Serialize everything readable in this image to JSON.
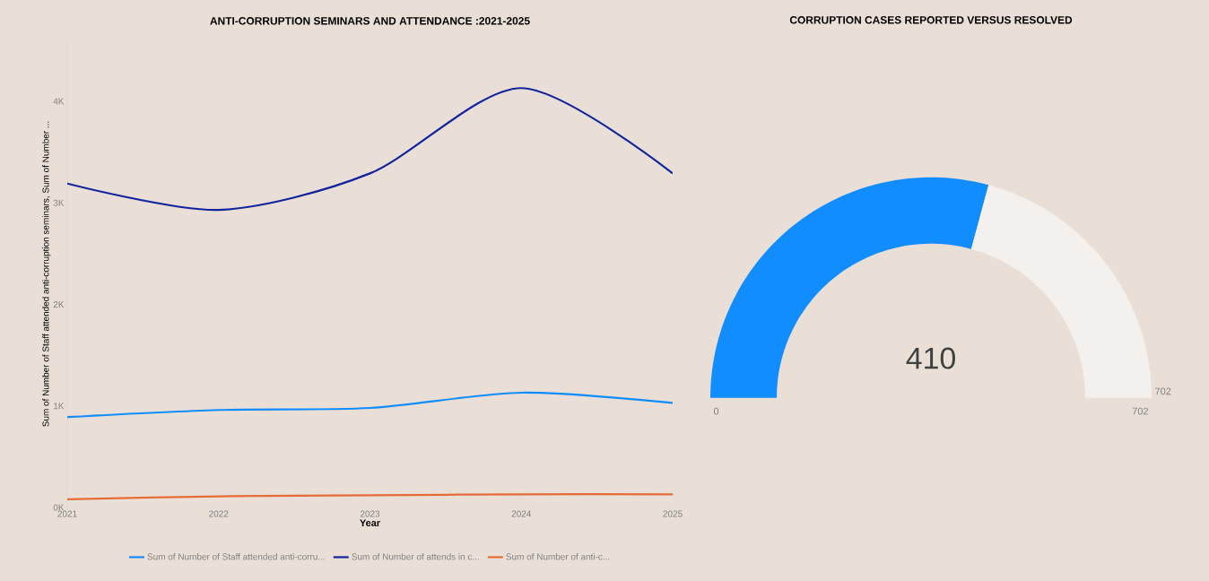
{
  "chart_data": [
    {
      "type": "line",
      "title": "ANTI-CORRUPTION SEMINARS AND ATTENDANCE :2021-2025",
      "xlabel": "Year",
      "ylabel": "Sum of Number of Staff attended anti-corruption seminars, Sum of Number ...",
      "categories": [
        "2021",
        "2022",
        "2023",
        "2024",
        "2025"
      ],
      "series": [
        {
          "name": "Sum of Number of Staff attended anti-corru...",
          "color": "#118dff",
          "values": [
            890,
            960,
            980,
            1130,
            1030
          ]
        },
        {
          "name": "Sum of Number of attends in c...",
          "color": "#12239e",
          "values": [
            3190,
            2930,
            3290,
            4130,
            3290
          ]
        },
        {
          "name": "Sum of Number of anti-c...",
          "color": "#e66c37",
          "values": [
            80,
            110,
            120,
            130,
            130
          ]
        }
      ],
      "ylim": [
        0,
        4600
      ],
      "yticks": [
        {
          "value": 0,
          "label": "0K"
        },
        {
          "value": 1000,
          "label": "1K"
        },
        {
          "value": 2000,
          "label": "2K"
        },
        {
          "value": 3000,
          "label": "3K"
        },
        {
          "value": 4000,
          "label": "4K"
        }
      ],
      "legend": "bottom"
    },
    {
      "type": "donut",
      "title": "CORRUPTION CASES REPORTED VERSUS RESOLVED",
      "categories": [
        null,
        null
      ],
      "values": [
        410,
        292
      ],
      "colors": [
        "#118dff",
        "#f3f0ed"
      ],
      "value_labels": [
        "410",
        null
      ],
      "annotations": [
        "0",
        "702",
        "702"
      ]
    }
  ]
}
